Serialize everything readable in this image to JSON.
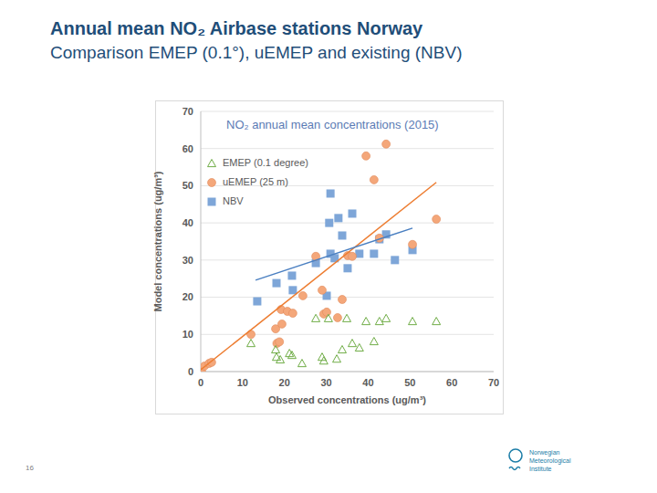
{
  "slide": {
    "heading": [
      "Annual mean NO₂ Airbase stations Norway",
      "Comparison EMEP (0.1°), uEMEP and existing (NBV)"
    ],
    "page": "16",
    "logo": [
      "Norwegian",
      "Meteorological",
      "Institute"
    ]
  },
  "chart_data": {
    "type": "scatter",
    "title": "NO₂ annual mean concentrations (2015)",
    "xlabel": "Observed concentrations (ug/m³)",
    "ylabel": "Model concentrations (ug/m³)",
    "xlim": [
      0,
      70
    ],
    "ylim": [
      0,
      70
    ],
    "xticks": [
      0,
      10,
      20,
      30,
      40,
      50,
      60,
      70
    ],
    "yticks": [
      0,
      10,
      20,
      30,
      40,
      50,
      60,
      70
    ],
    "grid": true,
    "legend": "upper left",
    "series": [
      {
        "name": "EMEP (0.1 degree)",
        "color": "#70ad47",
        "marker": "triangle-open",
        "x": [
          12,
          17.9,
          18.1,
          19,
          21.2,
          21.8,
          24.2,
          27.5,
          29,
          29.4,
          30.5,
          32.5,
          33.8,
          34.9,
          36.2,
          37.9,
          39.5,
          41.4,
          42.7,
          44.3,
          50.6,
          56.3
        ],
        "values": [
          7.6,
          5.9,
          3.9,
          3.2,
          4.9,
          4.4,
          2.2,
          14.3,
          3.9,
          2.9,
          14.3,
          3.4,
          5.9,
          14.3,
          7.6,
          6.4,
          13.5,
          8.1,
          13.5,
          14.3,
          13.5,
          13.5
        ]
      },
      {
        "name": "uEMEP (25 m)",
        "color": "#f4a77a",
        "marker": "circle",
        "x": [
          0.2,
          0.9,
          2,
          2.6,
          12,
          17.9,
          18.2,
          18.8,
          19.4,
          19.2,
          20.7,
          22,
          24.4,
          27.5,
          29,
          29.4,
          30.1,
          32.7,
          33.8,
          35.1,
          36.2,
          39.5,
          41.4,
          42.7,
          44.3,
          50.6,
          56.3
        ],
        "values": [
          0,
          1.5,
          2.2,
          2.5,
          10,
          11.5,
          7.6,
          8,
          12.8,
          16.7,
          16.2,
          15.7,
          20.4,
          31,
          21.9,
          15.5,
          16,
          14.5,
          19.4,
          31.2,
          31,
          58,
          51.6,
          35.9,
          61.2,
          34.2,
          41
        ],
        "trendline": {
          "color": "#ed7d31",
          "x": [
            0,
            56.3
          ],
          "values": [
            0.5,
            50.9
          ]
        }
      },
      {
        "name": "NBV",
        "color": "#7ea6d8",
        "marker": "square",
        "x": [
          13.5,
          18.1,
          21.8,
          22,
          27.5,
          30.1,
          31,
          30.7,
          31,
          32,
          32.9,
          33.8,
          35.1,
          36.2,
          37.9,
          41.4,
          42.7,
          44.3,
          46.4,
          50.6
        ],
        "values": [
          18.9,
          23.8,
          25.8,
          21.9,
          29.2,
          20.4,
          47.9,
          40,
          31.7,
          30.5,
          41.3,
          36.6,
          27.8,
          42.5,
          31.7,
          31.7,
          35.6,
          36.9,
          30,
          32.7
        ],
        "trendline": {
          "color": "#4a7fc1",
          "x": [
            13.1,
            50.6
          ],
          "values": [
            24.6,
            38.6
          ]
        }
      }
    ]
  }
}
